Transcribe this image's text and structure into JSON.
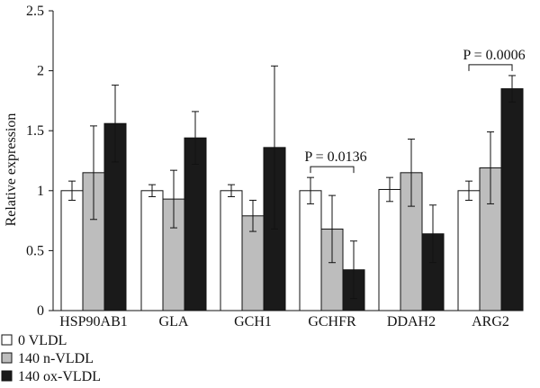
{
  "chart_data": {
    "type": "bar",
    "ylabel": "Relative expression",
    "ylim": [
      0,
      2.5
    ],
    "yticks": [
      "0",
      "0.5",
      "1",
      "1.5",
      "2",
      "2.5"
    ],
    "categories": [
      "HSP90AB1",
      "GLA",
      "GCH1",
      "GCHFR",
      "DDAH2",
      "ARG2"
    ],
    "series": [
      {
        "name": "0 VLDL",
        "color": "#ffffff",
        "values": [
          1.0,
          1.0,
          1.0,
          1.0,
          1.01,
          1.0
        ],
        "errors": [
          0.08,
          0.05,
          0.05,
          0.11,
          0.1,
          0.08
        ]
      },
      {
        "name": "140 n-VLDL",
        "color": "#bdbdbd",
        "values": [
          1.15,
          0.93,
          0.79,
          0.68,
          1.15,
          1.19
        ],
        "errors": [
          0.39,
          0.24,
          0.13,
          0.28,
          0.28,
          0.3
        ]
      },
      {
        "name": "140 ox-VLDL",
        "color": "#1a1a1a",
        "values": [
          1.56,
          1.44,
          1.36,
          0.34,
          0.64,
          1.85
        ],
        "errors": [
          0.32,
          0.22,
          0.68,
          0.24,
          0.24,
          0.11
        ]
      }
    ],
    "annotations": [
      {
        "category": "GCHFR",
        "text": "P = 0.0136"
      },
      {
        "category": "ARG2",
        "text": "P = 0.0006"
      }
    ],
    "legend_position": "bottom-left",
    "grid": false
  }
}
